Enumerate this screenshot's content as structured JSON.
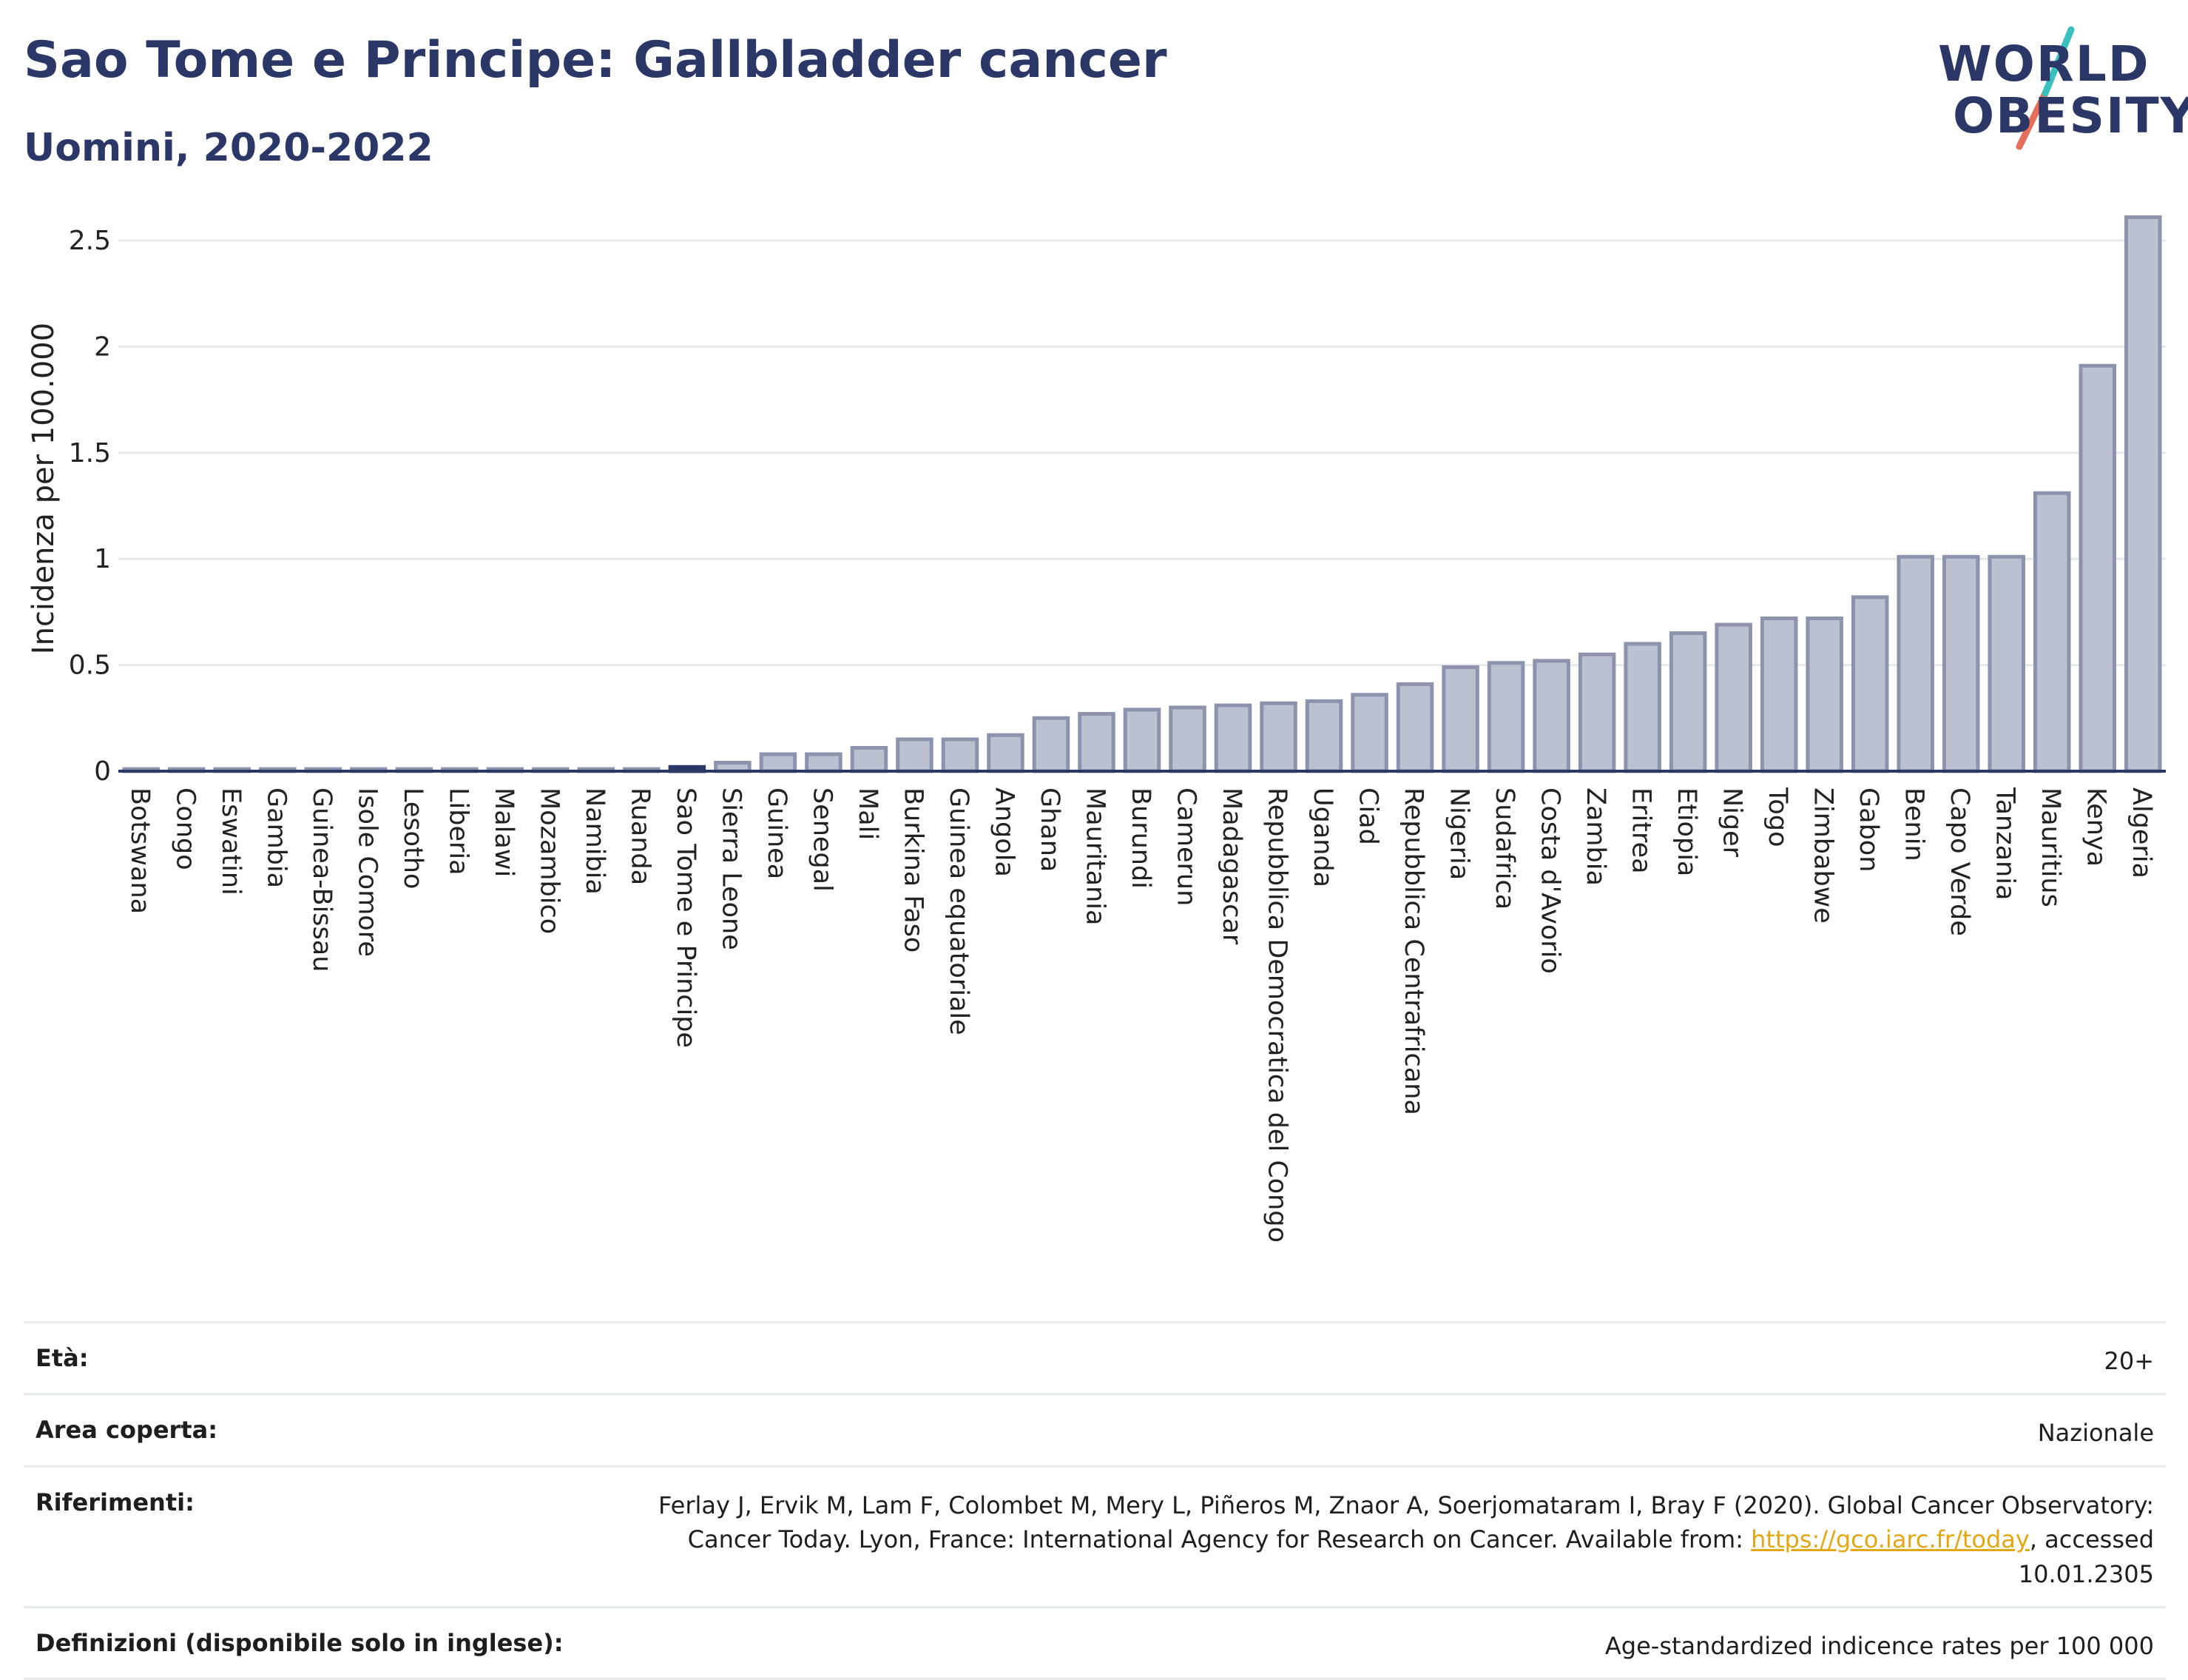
{
  "header": {
    "title": "Sao Tome e Principe: Gallbladder cancer",
    "subtitle": "Uomini, 2020-2022"
  },
  "logo": {
    "line1": "WORLD",
    "line2": "OBESITY"
  },
  "chart_data": {
    "type": "bar",
    "ylabel": "Incidenza per 100.000",
    "xlabel": "",
    "ylim": [
      0,
      2.65
    ],
    "yticks": [
      0,
      0.5,
      1,
      1.5,
      2,
      2.5
    ],
    "ytick_labels": [
      "0",
      "0.5",
      "1",
      "1.5",
      "2",
      "2.5"
    ],
    "highlight": "Sao Tome e Principe",
    "colors": {
      "bar": "#bcc1d1",
      "bar_edge": "#8d93ad",
      "highlight": "#2b3766",
      "grid": "#e6e9ec"
    },
    "grid": true,
    "categories": [
      "Botswana",
      "Congo",
      "Eswatini",
      "Gambia",
      "Guinea-Bissau",
      "Isole Comore",
      "Lesotho",
      "Liberia",
      "Malawi",
      "Mozambico",
      "Namibia",
      "Ruanda",
      "Sao Tome e Principe",
      "Sierra Leone",
      "Guinea",
      "Senegal",
      "Mali",
      "Burkina Faso",
      "Guinea equatoriale",
      "Angola",
      "Ghana",
      "Mauritania",
      "Burundi",
      "Camerun",
      "Madagascar",
      "Repubblica Democratica del Congo",
      "Uganda",
      "Ciad",
      "Repubblica Centrafricana",
      "Nigeria",
      "Sudafrica",
      "Costa d'Avorio",
      "Zambia",
      "Eritrea",
      "Etiopia",
      "Niger",
      "Togo",
      "Zimbabwe",
      "Gabon",
      "Benin",
      "Capo Verde",
      "Tanzania",
      "Mauritius",
      "Kenya",
      "Algeria"
    ],
    "values": [
      0.01,
      0.01,
      0.01,
      0.01,
      0.01,
      0.01,
      0.01,
      0.01,
      0.01,
      0.01,
      0.01,
      0.01,
      0.02,
      0.04,
      0.08,
      0.08,
      0.11,
      0.15,
      0.15,
      0.17,
      0.25,
      0.27,
      0.29,
      0.3,
      0.31,
      0.32,
      0.33,
      0.36,
      0.41,
      0.49,
      0.51,
      0.52,
      0.55,
      0.6,
      0.65,
      0.69,
      0.72,
      0.72,
      0.82,
      1.01,
      1.01,
      1.01,
      1.31,
      1.91,
      2.61
    ]
  },
  "info": {
    "age_label": "Età:",
    "age_value": "20+",
    "area_label": "Area coperta:",
    "area_value": "Nazionale",
    "ref_label": "Riferimenti:",
    "ref_text": "Ferlay J, Ervik M, Lam F, Colombet M, Mery L, Piñeros M, Znaor A, Soerjomataram I, Bray F (2020). Global Cancer Observatory: Cancer Today. Lyon, France: International Agency for Research on Cancer. Available from: ",
    "ref_link": "https://gco.iarc.fr/today",
    "ref_suffix": ", accessed 10.01.2305",
    "def_label": "Definizioni (disponibile solo in inglese):",
    "def_value": "Age-standardized indicence rates per 100 000"
  }
}
